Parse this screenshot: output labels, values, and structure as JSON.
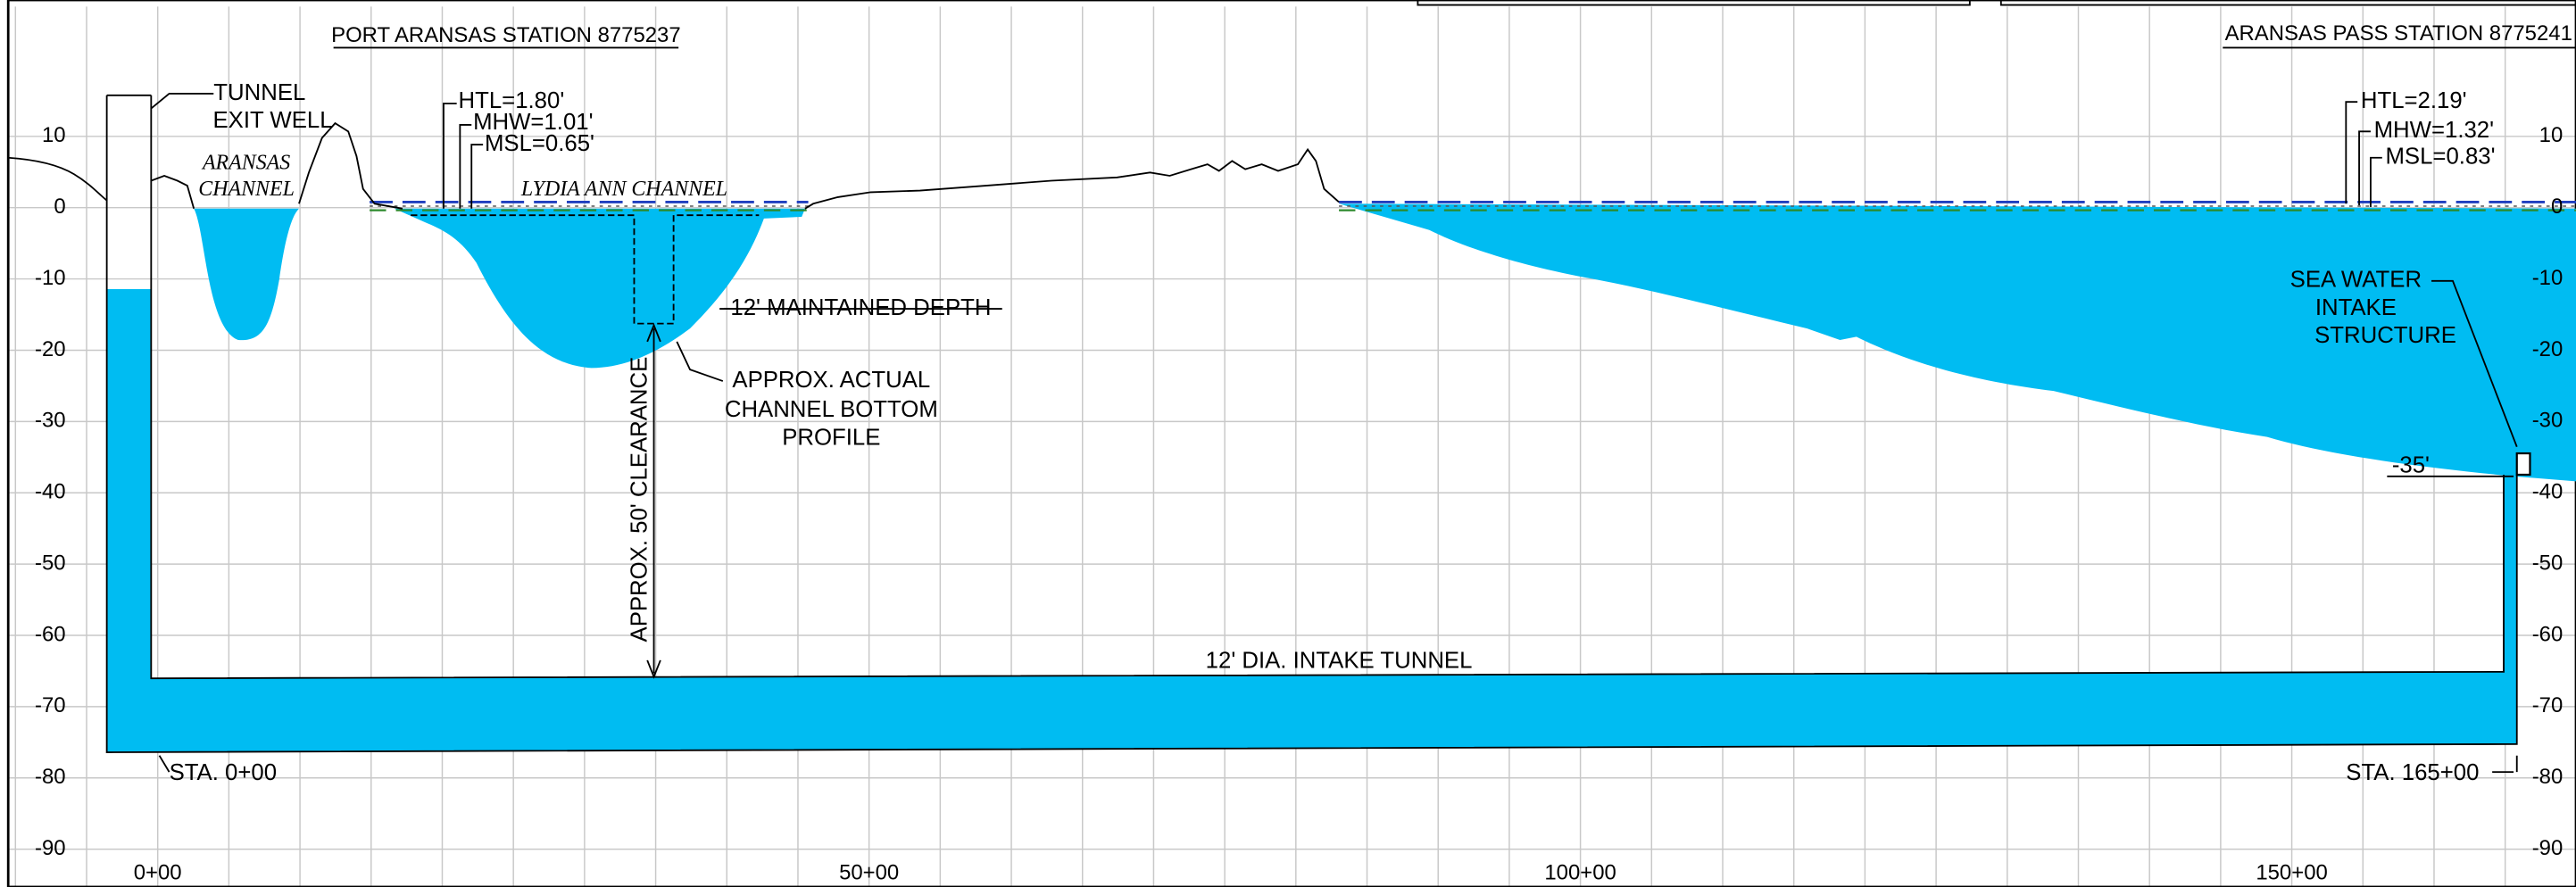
{
  "stations": {
    "left": "PORT ARANSAS STATION 8775237",
    "right": "ARANSAS PASS STATION 8775241"
  },
  "tides_left": [
    "HTL=1.80'",
    "MHW=1.01'",
    "MSL=0.65'"
  ],
  "tides_right": [
    "HTL=2.19'",
    "MHW=1.32'",
    "MSL=0.83'"
  ],
  "well": [
    "TUNNEL",
    "EXIT WELL"
  ],
  "aransas_channel": [
    "ARANSAS",
    "CHANNEL"
  ],
  "lydia_channel": "LYDIA ANN CHANNEL",
  "maintained_depth": "-12' MAINTAINED DEPTH",
  "bottom_profile": [
    "APPROX. ACTUAL",
    "CHANNEL BOTTOM",
    "PROFILE"
  ],
  "clearance": "APPROX. 50' CLEARANCE",
  "tunnel": "12' DIA. INTAKE TUNNEL",
  "intake": [
    "SEA WATER",
    "INTAKE",
    "STRUCTURE"
  ],
  "intake_depth": "-35'",
  "sta_start": "STA. 0+00",
  "sta_end": "STA. 165+00",
  "axis": {
    "left_ticks": [
      10,
      0,
      -10,
      -20,
      -30,
      -40,
      -50,
      -60,
      -70,
      -80,
      -90
    ],
    "right_ticks": [
      10,
      0,
      -10,
      -20,
      -30,
      -40,
      -50,
      -60,
      -70,
      -80,
      -90
    ],
    "x_ticks": [
      "0+00",
      "50+00",
      "100+00",
      "150+00"
    ]
  }
}
